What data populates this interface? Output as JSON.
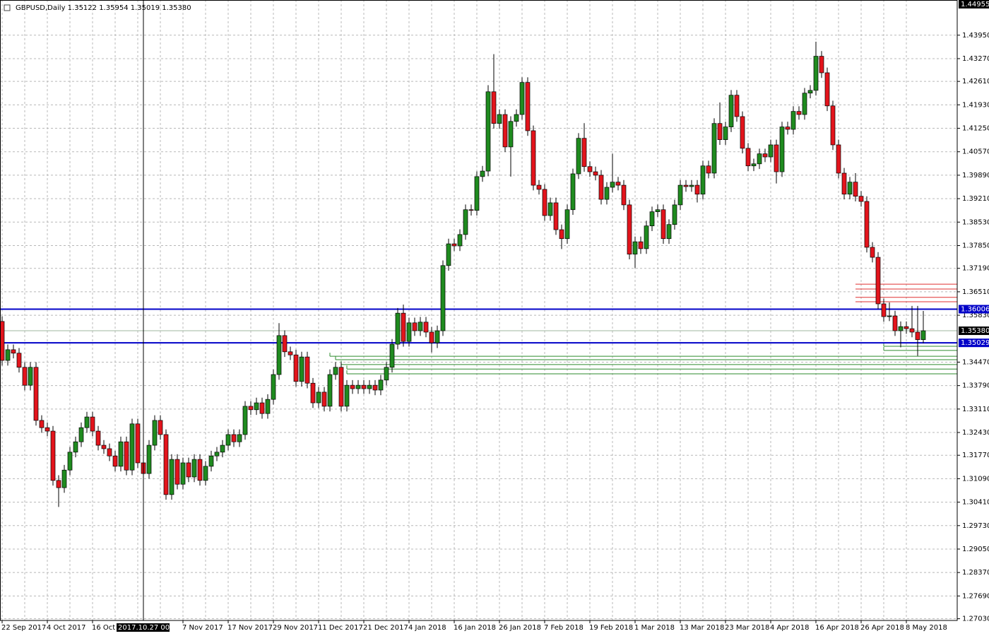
{
  "chart_data": {
    "type": "candlestick",
    "title": "GBPUSD,Daily  1.35122 1.35954 1.35019 1.35380",
    "categories": [
      "22 Sep 2017",
      null,
      null,
      null,
      null,
      null,
      null,
      null,
      "4 Oct 2017",
      null,
      null,
      null,
      null,
      null,
      null,
      null,
      "16 Oct 2017",
      null,
      null,
      null,
      null,
      null,
      null,
      null,
      null,
      null,
      null,
      null,
      null,
      null,
      null,
      null,
      "7 Nov 2017",
      null,
      null,
      null,
      null,
      null,
      null,
      null,
      "17 Nov 2017",
      null,
      null,
      null,
      null,
      null,
      null,
      null,
      "29 Nov 2017",
      null,
      null,
      null,
      null,
      null,
      null,
      null,
      "11 Dec 2017",
      null,
      null,
      null,
      null,
      null,
      null,
      null,
      "21 Dec 2017",
      null,
      null,
      null,
      null,
      null,
      null,
      null,
      "4 Jan 2018",
      null,
      null,
      null,
      null,
      null,
      null,
      null,
      "16 Jan 2018",
      null,
      null,
      null,
      null,
      null,
      null,
      null,
      "26 Jan 2018",
      null,
      null,
      null,
      null,
      null,
      null,
      null,
      "7 Feb 2018",
      null,
      null,
      null,
      null,
      null,
      null,
      null,
      "19 Feb 2018",
      null,
      null,
      null,
      null,
      null,
      null,
      null,
      "1 Mar 2018",
      null,
      null,
      null,
      null,
      null,
      null,
      null,
      "13 Mar 2018",
      null,
      null,
      null,
      null,
      null,
      null,
      null,
      "23 Mar 2018",
      null,
      null,
      null,
      null,
      null,
      null,
      null,
      "4 Apr 2018",
      null,
      null,
      null,
      null,
      null,
      null,
      null,
      "16 Apr 2018",
      null,
      null,
      null,
      null,
      null,
      null,
      null,
      "26 Apr 2018",
      null,
      null,
      null,
      null,
      null,
      null,
      null,
      "8 May 2018",
      null,
      null,
      null
    ],
    "open": [
      1.3565,
      1.3452,
      1.3483,
      1.3473,
      1.3432,
      1.338,
      1.3432,
      1.3278,
      1.3257,
      1.3247,
      1.3104,
      1.3083,
      1.3134,
      1.3186,
      1.3216,
      1.3257,
      1.3288,
      1.3247,
      1.3206,
      1.3196,
      1.3175,
      1.3145,
      1.3216,
      1.3134,
      1.3268,
      1.3155,
      1.3124,
      1.3206,
      1.3278,
      1.3237,
      1.3063,
      1.3165,
      1.3093,
      1.3155,
      1.3114,
      1.3165,
      1.3104,
      1.3145,
      1.3175,
      1.3186,
      1.3206,
      1.3237,
      1.3216,
      1.3237,
      1.3319,
      1.3309,
      1.3329,
      1.3298,
      1.3339,
      1.3411,
      1.3524,
      1.3477,
      1.3468,
      1.3391,
      1.3462,
      1.3386,
      1.3329,
      1.336,
      1.3319,
      1.3411,
      1.3432,
      1.3319,
      1.338,
      1.337,
      1.338,
      1.337,
      1.338,
      1.3366,
      1.3395,
      1.3432,
      1.3499,
      1.3589,
      1.3507,
      1.3561,
      1.3538,
      1.3563,
      1.3534,
      1.3503,
      1.3538,
      1.3727,
      1.379,
      1.3784,
      1.3817,
      1.3889,
      1.3887,
      1.3985,
      1.4001,
      1.4231,
      1.4139,
      1.4165,
      1.4071,
      1.4145,
      1.4165,
      1.4258,
      1.4118,
      1.396,
      1.3948,
      1.3872,
      1.3909,
      1.3831,
      1.3805,
      1.3889,
      1.3993,
      1.4096,
      1.4014,
      1.3999,
      1.3989,
      1.3919,
      1.3954,
      1.3969,
      1.396,
      1.3903,
      1.376,
      1.3796,
      1.3776,
      1.3842,
      1.3883,
      1.3889,
      1.3805,
      1.3846,
      1.3903,
      1.396,
      1.3956,
      1.396,
      1.3934,
      1.4016,
      1.3995,
      1.4139,
      1.4092,
      1.4129,
      1.4221,
      1.4159,
      1.4067,
      1.4016,
      1.4022,
      1.4051,
      1.4042,
      1.4077,
      1.3999,
      1.4129,
      1.4122,
      1.4174,
      1.4165,
      1.4227,
      1.4235,
      1.4334,
      1.4286,
      1.419,
      1.4077,
      1.3995,
      1.3934,
      1.3969,
      1.3928,
      1.3913,
      1.378,
      1.3751,
      1.3616,
      1.3579,
      1.3581,
      1.3538,
      1.355,
      1.3544,
      1.3534,
      1.35122
    ],
    "high": [
      1.358,
      1.3498,
      1.3498,
      1.3488,
      1.3447,
      1.3447,
      1.3447,
      1.3293,
      1.3272,
      1.3262,
      1.3119,
      1.3149,
      1.3201,
      1.3231,
      1.3272,
      1.3303,
      1.3303,
      1.3262,
      1.3221,
      1.3211,
      1.319,
      1.3231,
      1.3231,
      1.3283,
      1.3283,
      1.317,
      1.3221,
      1.3293,
      1.3293,
      1.3252,
      1.318,
      1.318,
      1.317,
      1.317,
      1.318,
      1.318,
      1.316,
      1.319,
      1.3201,
      1.3221,
      1.3252,
      1.3252,
      1.3252,
      1.3334,
      1.3334,
      1.3344,
      1.3344,
      1.3354,
      1.3426,
      1.356,
      1.3539,
      1.3492,
      1.3483,
      1.3477,
      1.3477,
      1.3401,
      1.3375,
      1.3375,
      1.3426,
      1.3447,
      1.3447,
      1.3395,
      1.3395,
      1.3395,
      1.3395,
      1.3395,
      1.3395,
      1.341,
      1.3447,
      1.3514,
      1.3604,
      1.3614,
      1.3576,
      1.3576,
      1.3578,
      1.3578,
      1.3549,
      1.3553,
      1.3742,
      1.3805,
      1.3805,
      1.3832,
      1.3904,
      1.3904,
      1.4,
      1.4016,
      1.425,
      1.434,
      1.418,
      1.418,
      1.416,
      1.418,
      1.4273,
      1.4273,
      1.4133,
      1.3975,
      1.3963,
      1.3924,
      1.3924,
      1.3846,
      1.3904,
      1.4008,
      1.4111,
      1.414,
      1.4029,
      1.4014,
      1.4004,
      1.3969,
      1.4051,
      1.3984,
      1.3975,
      1.3918,
      1.3811,
      1.3811,
      1.3857,
      1.3898,
      1.3904,
      1.3904,
      1.3861,
      1.3918,
      1.3975,
      1.3975,
      1.3975,
      1.3975,
      1.4031,
      1.4031,
      1.4154,
      1.42,
      1.4144,
      1.4236,
      1.4236,
      1.4174,
      1.4082,
      1.4037,
      1.4066,
      1.4066,
      1.4092,
      1.4092,
      1.4144,
      1.4144,
      1.4189,
      1.4189,
      1.4242,
      1.425,
      1.4376,
      1.4349,
      1.4301,
      1.4205,
      1.4092,
      1.401,
      1.3984,
      1.3995,
      1.3943,
      1.3928,
      1.3795,
      1.3766,
      1.3631,
      1.362,
      1.3596,
      1.3565,
      1.3565,
      1.361,
      1.361,
      1.35954
    ],
    "low": [
      1.3437,
      1.3437,
      1.3458,
      1.3417,
      1.3365,
      1.3365,
      1.3263,
      1.3242,
      1.3232,
      1.3089,
      1.3027,
      1.3068,
      1.3119,
      1.3171,
      1.3201,
      1.3242,
      1.3232,
      1.3191,
      1.3181,
      1.316,
      1.313,
      1.313,
      1.3119,
      1.3119,
      1.314,
      1.3109,
      1.3109,
      1.3191,
      1.3222,
      1.3048,
      1.3048,
      1.3078,
      1.3078,
      1.3099,
      1.3099,
      1.3089,
      1.3089,
      1.313,
      1.316,
      1.3171,
      1.3191,
      1.3201,
      1.3201,
      1.3222,
      1.3294,
      1.3294,
      1.3283,
      1.3283,
      1.3324,
      1.3396,
      1.3462,
      1.3453,
      1.3376,
      1.3376,
      1.3371,
      1.3314,
      1.3314,
      1.3304,
      1.3304,
      1.3396,
      1.3304,
      1.3304,
      1.3355,
      1.3355,
      1.3355,
      1.3355,
      1.3351,
      1.3351,
      1.338,
      1.3417,
      1.3484,
      1.3492,
      1.3492,
      1.3523,
      1.3523,
      1.3519,
      1.3475,
      1.3488,
      1.3523,
      1.3712,
      1.3769,
      1.3769,
      1.3802,
      1.3872,
      1.3872,
      1.397,
      1.3986,
      1.4124,
      1.4124,
      1.4056,
      1.3985,
      1.413,
      1.415,
      1.4103,
      1.3945,
      1.3933,
      1.3857,
      1.3857,
      1.3816,
      1.3775,
      1.379,
      1.3874,
      1.3978,
      1.3999,
      1.3984,
      1.3974,
      1.3904,
      1.3904,
      1.3939,
      1.3945,
      1.3888,
      1.3745,
      1.372,
      1.3761,
      1.3761,
      1.3827,
      1.3868,
      1.379,
      1.379,
      1.3831,
      1.3888,
      1.3941,
      1.3941,
      1.391,
      1.3919,
      1.398,
      1.398,
      1.4077,
      1.4077,
      1.4114,
      1.4144,
      1.4052,
      1.4001,
      1.4001,
      1.4007,
      1.4027,
      1.4027,
      1.3965,
      1.3984,
      1.4107,
      1.4107,
      1.415,
      1.415,
      1.4212,
      1.422,
      1.4271,
      1.4175,
      1.4062,
      1.398,
      1.3919,
      1.3919,
      1.3913,
      1.3898,
      1.3765,
      1.3736,
      1.3601,
      1.3564,
      1.3566,
      1.3523,
      1.349,
      1.3529,
      1.3519,
      1.3465,
      1.35019
    ],
    "close": [
      1.3452,
      1.3483,
      1.3473,
      1.3432,
      1.338,
      1.3432,
      1.3278,
      1.3257,
      1.3247,
      1.3104,
      1.3083,
      1.3134,
      1.3186,
      1.3216,
      1.3257,
      1.3288,
      1.3247,
      1.3206,
      1.3196,
      1.3175,
      1.3145,
      1.3216,
      1.3134,
      1.3268,
      1.3155,
      1.3124,
      1.3206,
      1.3278,
      1.3237,
      1.3063,
      1.3165,
      1.3093,
      1.3155,
      1.3114,
      1.3165,
      1.3104,
      1.3145,
      1.3175,
      1.3186,
      1.3206,
      1.3237,
      1.3216,
      1.3237,
      1.3319,
      1.3309,
      1.3329,
      1.3298,
      1.3339,
      1.3411,
      1.3524,
      1.3477,
      1.3468,
      1.3391,
      1.3462,
      1.3386,
      1.3329,
      1.336,
      1.3319,
      1.3411,
      1.3432,
      1.3319,
      1.338,
      1.337,
      1.338,
      1.337,
      1.338,
      1.3366,
      1.3395,
      1.3432,
      1.3499,
      1.3589,
      1.3507,
      1.3561,
      1.3538,
      1.3563,
      1.3534,
      1.3503,
      1.3538,
      1.3727,
      1.379,
      1.3784,
      1.3817,
      1.3889,
      1.3887,
      1.3985,
      1.4001,
      1.4231,
      1.4139,
      1.4165,
      1.4071,
      1.4145,
      1.4165,
      1.4258,
      1.4118,
      1.396,
      1.3948,
      1.3872,
      1.3909,
      1.3831,
      1.3805,
      1.3889,
      1.3993,
      1.4096,
      1.4014,
      1.3999,
      1.3989,
      1.3919,
      1.3954,
      1.3969,
      1.396,
      1.3903,
      1.376,
      1.3796,
      1.3776,
      1.3842,
      1.3883,
      1.3889,
      1.3805,
      1.3846,
      1.3903,
      1.396,
      1.3956,
      1.396,
      1.3934,
      1.4016,
      1.3995,
      1.4139,
      1.4092,
      1.4129,
      1.4221,
      1.4159,
      1.4067,
      1.4016,
      1.4022,
      1.4051,
      1.4042,
      1.4077,
      1.3999,
      1.4129,
      1.4122,
      1.4174,
      1.4165,
      1.4227,
      1.4235,
      1.4334,
      1.4286,
      1.419,
      1.4077,
      1.3995,
      1.3934,
      1.3969,
      1.3928,
      1.3913,
      1.378,
      1.3751,
      1.3616,
      1.3579,
      1.3581,
      1.3538,
      1.355,
      1.3544,
      1.3534,
      1.35122,
      1.3538
    ],
    "up_color": "#1f8b1f",
    "down_color": "#e3141c",
    "ylim": [
      1.2698,
      1.4497
    ],
    "yticks": [
      {
        "value": 1.4395,
        "label": "1.43950"
      },
      {
        "value": 1.4327,
        "label": "1.43270"
      },
      {
        "value": 1.4261,
        "label": "1.42610"
      },
      {
        "value": 1.4193,
        "label": "1.41930"
      },
      {
        "value": 1.4125,
        "label": "1.41250"
      },
      {
        "value": 1.4057,
        "label": "1.40570"
      },
      {
        "value": 1.3989,
        "label": "1.39890"
      },
      {
        "value": 1.3921,
        "label": "1.39210"
      },
      {
        "value": 1.3853,
        "label": "1.38530"
      },
      {
        "value": 1.3785,
        "label": "1.37850"
      },
      {
        "value": 1.3719,
        "label": "1.37190"
      },
      {
        "value": 1.3651,
        "label": "1.36510"
      },
      {
        "value": 1.3583,
        "label": "1.35830"
      },
      {
        "value": 1.3447,
        "label": "1.34470"
      },
      {
        "value": 1.3379,
        "label": "1.33790"
      },
      {
        "value": 1.3311,
        "label": "1.33110"
      },
      {
        "value": 1.3243,
        "label": "1.32430"
      },
      {
        "value": 1.3177,
        "label": "1.31770"
      },
      {
        "value": 1.3109,
        "label": "1.31090"
      },
      {
        "value": 1.3041,
        "label": "1.30410"
      },
      {
        "value": 1.2973,
        "label": "1.29730"
      },
      {
        "value": 1.2905,
        "label": "1.29050"
      },
      {
        "value": 1.2837,
        "label": "1.28370"
      },
      {
        "value": 1.2769,
        "label": "1.27690"
      },
      {
        "value": 1.2703,
        "label": "1.27030"
      }
    ],
    "top_label": {
      "value": 1.44955,
      "label": "1.44955"
    },
    "grid": true,
    "hlines": [
      {
        "value": 1.36006,
        "label": "1.36006",
        "color": "#0000c8"
      },
      {
        "value": 1.35029,
        "label": "1.35029",
        "color": "#0000c8"
      },
      {
        "value": 1.3538,
        "label": "1.35380",
        "color": "#9fb79f"
      }
    ],
    "red_levels": {
      "color": "#e03030",
      "start": 151,
      "values": [
        1.3673,
        1.3659,
        1.3635,
        1.3622
      ]
    },
    "green_levels": {
      "color": "#2e8b2e",
      "starts": [
        156,
        156,
        58,
        59,
        60,
        61,
        61
      ],
      "values": [
        1.3493,
        1.3481,
        1.3464,
        1.3454,
        1.344,
        1.3427,
        1.3413
      ]
    },
    "crosshair": {
      "index": 25,
      "label": "2017.10.27 00:00"
    }
  }
}
